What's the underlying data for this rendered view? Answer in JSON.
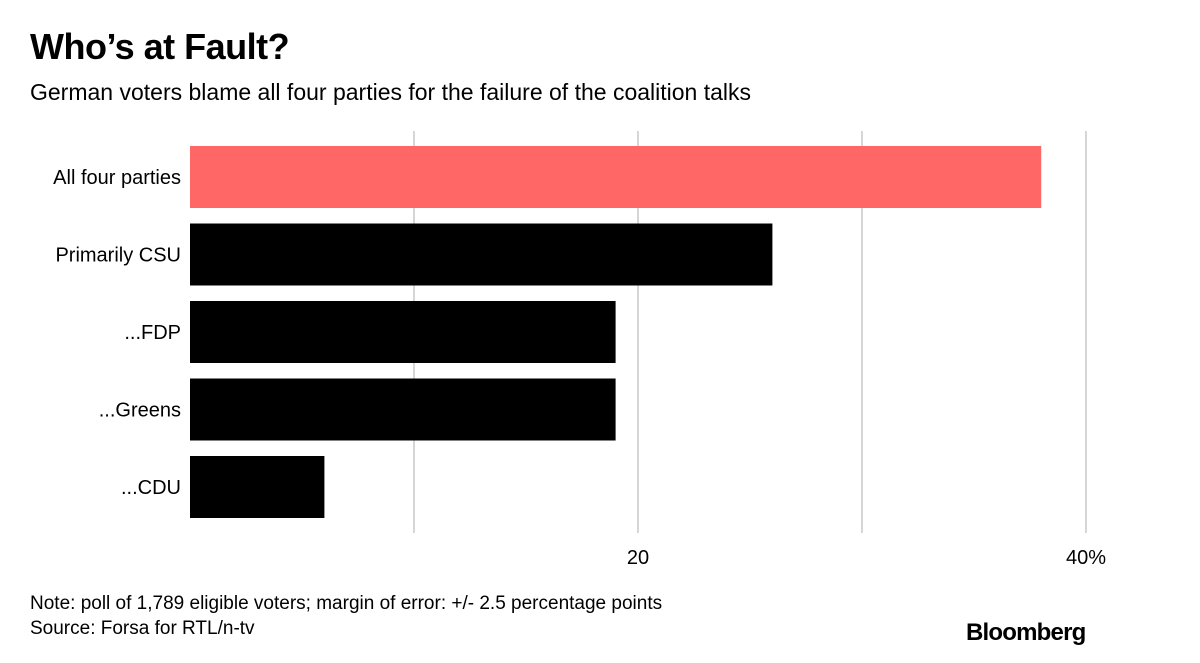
{
  "header": {
    "title": "Who’s at Fault?",
    "subtitle": "German voters blame all four parties for the failure of the coalition talks"
  },
  "chart_data": {
    "type": "bar",
    "orientation": "horizontal",
    "categories": [
      "All four parties",
      "Primarily CSU",
      "...FDP",
      "...Greens",
      "...CDU"
    ],
    "values": [
      38,
      26,
      19,
      19,
      6
    ],
    "bar_colors": [
      "#ff6666",
      "#000000",
      "#000000",
      "#000000",
      "#000000"
    ],
    "xlim": [
      0,
      40
    ],
    "gridlines": [
      10,
      20,
      30,
      40
    ],
    "tick_labels": [
      {
        "value": 20,
        "label": "20"
      },
      {
        "value": 40,
        "label": "40%"
      }
    ],
    "grid": true
  },
  "footer": {
    "note": "Note: poll of 1,789 eligible voters; margin of error: +/- 2.5 percentage points",
    "source": "Source: Forsa for RTL/n-tv",
    "brand": "Bloomberg"
  }
}
